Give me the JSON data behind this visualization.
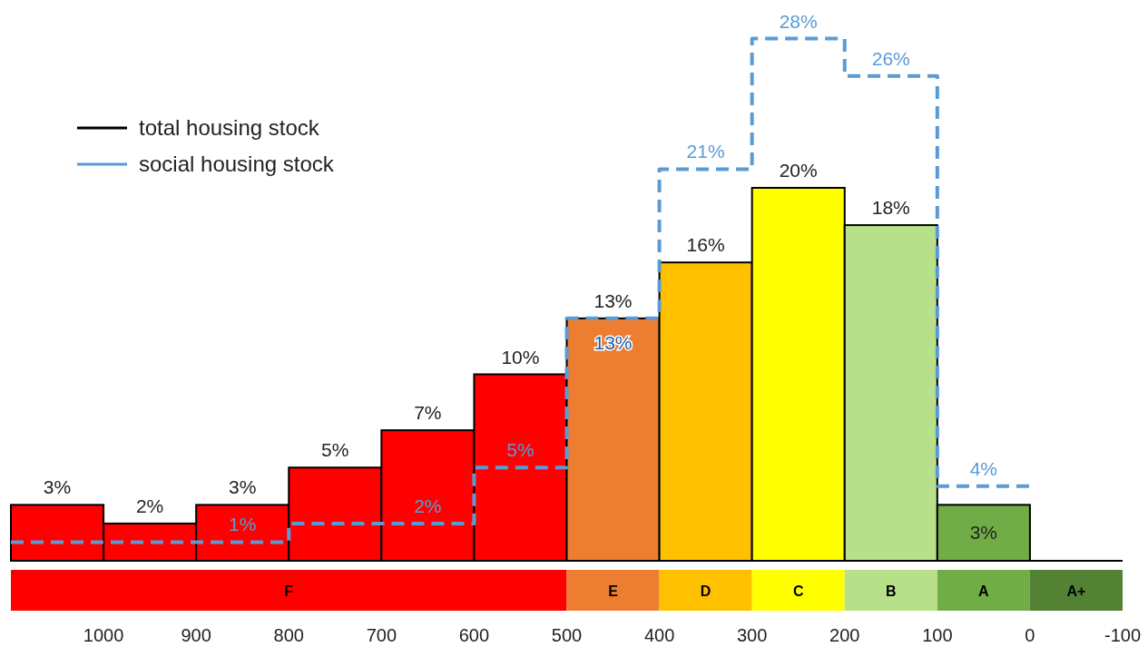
{
  "chart_data": [
    {
      "type": "bar",
      "x": [
        1050,
        950,
        850,
        750,
        650,
        550,
        450,
        350,
        250,
        150,
        50
      ],
      "xlim": [
        1100,
        -100
      ],
      "xticks": [
        1000,
        900,
        800,
        700,
        600,
        500,
        400,
        300,
        200,
        100,
        0,
        -100
      ],
      "tick_labels": "x",
      "legend": "top left",
      "grid": false,
      "series": [
        {
          "name": "total housing stock",
          "color": "#000000",
          "colors": [
            "#ff0000",
            "#ff0000",
            "#ff0000",
            "#ff0000",
            "#ff0000",
            "#ff0000",
            "#ed7d31",
            "#ffc000",
            "#ffff00",
            "#b8e08a",
            "#70ad47"
          ],
          "values": [
            3,
            2,
            3,
            5,
            7,
            10,
            13,
            16,
            20,
            18,
            3
          ],
          "value_labels": [
            "3%",
            "2%",
            "3%",
            "5%",
            "7%",
            "10%",
            "13%",
            "16%",
            "20%",
            "18%",
            "3%"
          ]
        },
        {
          "name": "social housing stock",
          "type": "step",
          "color": "#5b9bd5",
          "line_style": "dashed",
          "x": [
            1100,
            1000,
            900,
            800,
            700,
            600,
            500,
            400,
            300,
            200,
            100,
            0
          ],
          "values": [
            1,
            1,
            1,
            2,
            2,
            5,
            13,
            21,
            28,
            26,
            4,
            4
          ],
          "value_labels": [
            null,
            null,
            "1%",
            null,
            "2%",
            "5%",
            "13%",
            "21%",
            "28%",
            "26%",
            "4%",
            null
          ]
        }
      ]
    },
    {
      "type": "bar",
      "orientation": "horizontal",
      "categories": [
        null
      ],
      "xlim": [
        1100,
        -100
      ],
      "tick_labels": false,
      "series": [
        {
          "name": "F",
          "color": "#ff0000",
          "base": [
            500
          ],
          "values": [
            600
          ]
        },
        {
          "name": "E",
          "color": "#ed7d31",
          "base": [
            400
          ],
          "values": [
            100
          ]
        },
        {
          "name": "D",
          "color": "#ffc000",
          "base": [
            300
          ],
          "values": [
            100
          ]
        },
        {
          "name": "C",
          "color": "#ffff00",
          "base": [
            200
          ],
          "values": [
            100
          ]
        },
        {
          "name": "B",
          "color": "#b8e08a",
          "base": [
            100
          ],
          "values": [
            100
          ]
        },
        {
          "name": "A",
          "color": "#70ad47",
          "base": [
            0
          ],
          "values": [
            100
          ]
        },
        {
          "name": "A+",
          "color": "#548235",
          "base": [
            -100
          ],
          "values": [
            100
          ]
        }
      ]
    }
  ]
}
